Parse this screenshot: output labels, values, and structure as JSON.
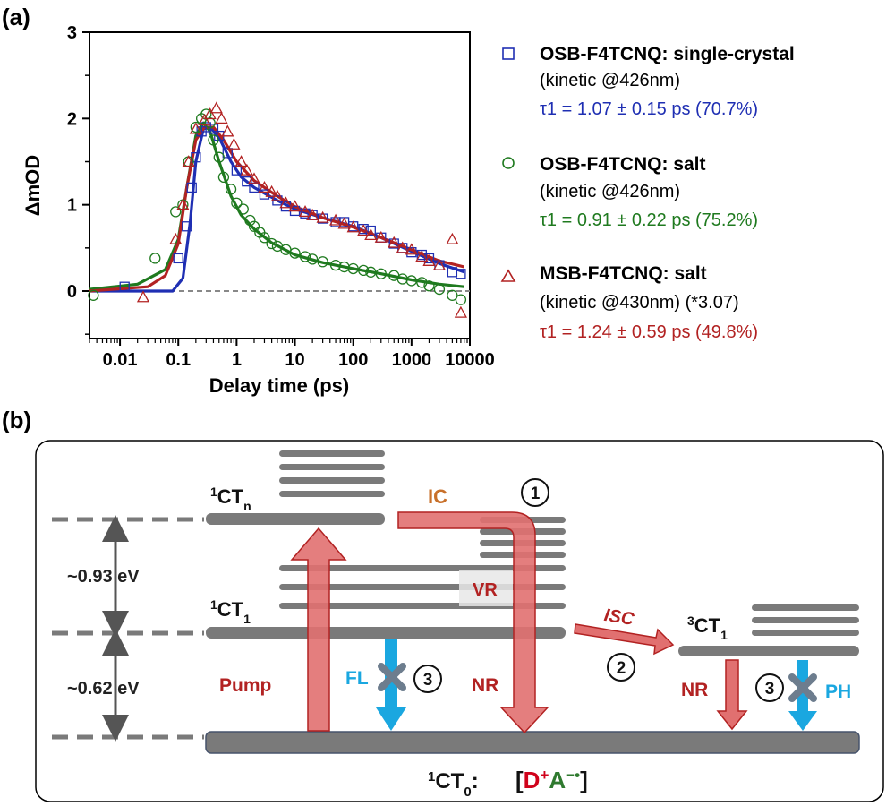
{
  "panels": {
    "a": "(a)",
    "b": "(b)"
  },
  "chart_data": {
    "type": "scatter",
    "xscale": "log",
    "xlabel": "Delay time (ps)",
    "ylabel": "ΔmOD",
    "xlim": [
      0.003,
      10000
    ],
    "ylim": [
      -0.55,
      3
    ],
    "xticks": [
      "0.01",
      "0.1",
      "1",
      "10",
      "100",
      "1000",
      "10000"
    ],
    "yticks": [
      "0",
      "1",
      "2",
      "3"
    ],
    "grid": false,
    "legend_position": "right",
    "series": [
      {
        "name": "OSB-F4TCNQ: single-crystal",
        "condition": "(kinetic @426nm)",
        "tau_label": "τ1 = 1.07 ± 0.15 ps (70.7%)",
        "color": "#1f2fb3",
        "marker": "square",
        "points": [
          [
            0.012,
            0.05
          ],
          [
            0.1,
            0.38
          ],
          [
            0.14,
            0.75
          ],
          [
            0.17,
            1.2
          ],
          [
            0.2,
            1.55
          ],
          [
            0.25,
            1.85
          ],
          [
            0.3,
            1.9
          ],
          [
            0.4,
            1.88
          ],
          [
            0.5,
            1.8
          ],
          [
            0.7,
            1.6
          ],
          [
            1,
            1.4
          ],
          [
            1.5,
            1.27
          ],
          [
            2,
            1.2
          ],
          [
            3,
            1.12
          ],
          [
            5,
            1.05
          ],
          [
            7,
            0.98
          ],
          [
            10,
            0.93
          ],
          [
            15,
            0.9
          ],
          [
            20,
            0.88
          ],
          [
            30,
            0.84
          ],
          [
            50,
            0.8
          ],
          [
            70,
            0.8
          ],
          [
            100,
            0.75
          ],
          [
            150,
            0.72
          ],
          [
            200,
            0.7
          ],
          [
            300,
            0.62
          ],
          [
            500,
            0.55
          ],
          [
            700,
            0.5
          ],
          [
            1000,
            0.45
          ],
          [
            1500,
            0.42
          ],
          [
            2000,
            0.38
          ],
          [
            3000,
            0.3
          ],
          [
            5000,
            0.22
          ],
          [
            7000,
            0.2
          ]
        ],
        "fit": [
          [
            0.003,
            0.0
          ],
          [
            0.08,
            0.0
          ],
          [
            0.12,
            0.15
          ],
          [
            0.16,
            0.8
          ],
          [
            0.2,
            1.5
          ],
          [
            0.27,
            1.88
          ],
          [
            0.35,
            1.9
          ],
          [
            0.5,
            1.78
          ],
          [
            0.8,
            1.5
          ],
          [
            1.2,
            1.32
          ],
          [
            2,
            1.2
          ],
          [
            5,
            1.05
          ],
          [
            10,
            0.95
          ],
          [
            30,
            0.85
          ],
          [
            100,
            0.75
          ],
          [
            300,
            0.62
          ],
          [
            1000,
            0.46
          ],
          [
            3000,
            0.32
          ],
          [
            8000,
            0.22
          ]
        ]
      },
      {
        "name": "OSB-F4TCNQ: salt",
        "condition": "(kinetic @426nm)",
        "tau_label": "τ1 = 0.91 ± 0.22 ps (75.2%)",
        "color": "#1f7a1f",
        "marker": "circle",
        "points": [
          [
            0.0035,
            -0.05
          ],
          [
            0.04,
            0.38
          ],
          [
            0.09,
            0.92
          ],
          [
            0.12,
            1.0
          ],
          [
            0.15,
            1.5
          ],
          [
            0.2,
            1.9
          ],
          [
            0.25,
            2.0
          ],
          [
            0.3,
            2.05
          ],
          [
            0.35,
            1.95
          ],
          [
            0.4,
            1.75
          ],
          [
            0.5,
            1.55
          ],
          [
            0.6,
            1.32
          ],
          [
            0.8,
            1.18
          ],
          [
            1,
            1.02
          ],
          [
            1.3,
            0.95
          ],
          [
            1.7,
            0.82
          ],
          [
            2,
            0.75
          ],
          [
            2.5,
            0.68
          ],
          [
            3,
            0.62
          ],
          [
            4,
            0.55
          ],
          [
            5,
            0.52
          ],
          [
            7,
            0.48
          ],
          [
            10,
            0.44
          ],
          [
            15,
            0.4
          ],
          [
            20,
            0.37
          ],
          [
            30,
            0.34
          ],
          [
            50,
            0.3
          ],
          [
            70,
            0.28
          ],
          [
            100,
            0.26
          ],
          [
            150,
            0.24
          ],
          [
            200,
            0.22
          ],
          [
            300,
            0.2
          ],
          [
            500,
            0.18
          ],
          [
            700,
            0.14
          ],
          [
            1000,
            0.12
          ],
          [
            1500,
            0.1
          ],
          [
            2000,
            0.06
          ],
          [
            3000,
            0.02
          ],
          [
            5000,
            -0.05
          ],
          [
            7000,
            -0.1
          ]
        ],
        "fit": [
          [
            0.003,
            0.02
          ],
          [
            0.02,
            0.08
          ],
          [
            0.06,
            0.25
          ],
          [
            0.1,
            0.6
          ],
          [
            0.14,
            1.2
          ],
          [
            0.2,
            1.8
          ],
          [
            0.27,
            1.95
          ],
          [
            0.35,
            1.85
          ],
          [
            0.5,
            1.5
          ],
          [
            0.8,
            1.1
          ],
          [
            1.2,
            0.88
          ],
          [
            2,
            0.72
          ],
          [
            4,
            0.56
          ],
          [
            10,
            0.42
          ],
          [
            30,
            0.33
          ],
          [
            100,
            0.26
          ],
          [
            300,
            0.2
          ],
          [
            1000,
            0.13
          ],
          [
            3000,
            0.08
          ],
          [
            8000,
            0.05
          ]
        ]
      },
      {
        "name": "MSB-F4TCNQ: salt",
        "condition": "(kinetic @430nm) (*3.07)",
        "tau_label": "τ1 = 1.24 ± 0.59 ps (49.8%)",
        "color": "#b22222",
        "marker": "triangle",
        "points": [
          [
            0.025,
            -0.07
          ],
          [
            0.09,
            0.6
          ],
          [
            0.12,
            1.0
          ],
          [
            0.15,
            1.5
          ],
          [
            0.2,
            1.88
          ],
          [
            0.28,
            1.98
          ],
          [
            0.35,
            2.05
          ],
          [
            0.45,
            2.12
          ],
          [
            0.55,
            2.0
          ],
          [
            0.7,
            1.85
          ],
          [
            0.9,
            1.7
          ],
          [
            1.2,
            1.5
          ],
          [
            1.5,
            1.4
          ],
          [
            2,
            1.3
          ],
          [
            3,
            1.2
          ],
          [
            4,
            1.15
          ],
          [
            5,
            1.1
          ],
          [
            7,
            1.02
          ],
          [
            10,
            0.98
          ],
          [
            15,
            0.92
          ],
          [
            20,
            0.88
          ],
          [
            30,
            0.85
          ],
          [
            50,
            0.82
          ],
          [
            70,
            0.78
          ],
          [
            100,
            0.74
          ],
          [
            150,
            0.7
          ],
          [
            200,
            0.65
          ],
          [
            300,
            0.62
          ],
          [
            500,
            0.56
          ],
          [
            700,
            0.5
          ],
          [
            1000,
            0.48
          ],
          [
            1500,
            0.4
          ],
          [
            2000,
            0.35
          ],
          [
            3000,
            0.3
          ],
          [
            5000,
            0.6
          ],
          [
            7000,
            -0.25
          ]
        ],
        "fit": [
          [
            0.003,
            0.0
          ],
          [
            0.03,
            0.05
          ],
          [
            0.06,
            0.18
          ],
          [
            0.1,
            0.55
          ],
          [
            0.14,
            1.2
          ],
          [
            0.2,
            1.75
          ],
          [
            0.28,
            1.9
          ],
          [
            0.4,
            1.9
          ],
          [
            0.6,
            1.75
          ],
          [
            1,
            1.5
          ],
          [
            2,
            1.28
          ],
          [
            5,
            1.1
          ],
          [
            10,
            0.98
          ],
          [
            30,
            0.85
          ],
          [
            100,
            0.74
          ],
          [
            300,
            0.62
          ],
          [
            1000,
            0.48
          ],
          [
            3000,
            0.35
          ],
          [
            8000,
            0.28
          ]
        ]
      }
    ]
  },
  "diagram": {
    "state_ctn": "1CTn",
    "state_ct1": "1CT1",
    "state_3ct1": "3CT1",
    "state_ct0": "1CT0:",
    "gap_upper": "~0.93 eV",
    "gap_lower": "~0.62 eV",
    "ic": "IC",
    "vr": "VR",
    "nr_singlet": "NR",
    "nr_triplet": "NR",
    "isc": "ISC",
    "pump": "Pump",
    "fl": "FL",
    "ph": "PH",
    "circle_1": "1",
    "circle_2": "2",
    "circle_3a": "3",
    "circle_3b": "3",
    "formula": {
      "open": "[",
      "donor": "D",
      "donor_sup": "+",
      "acceptor": "A",
      "acceptor_sup": "−•",
      "close": "]"
    },
    "colors": {
      "red_arrow": "#e17070",
      "red_text": "#b22222",
      "blue": "#1aa7e0",
      "orange": "#c8702a",
      "gray_level": "#7a7a7a",
      "green": "#2f7a2f"
    }
  }
}
